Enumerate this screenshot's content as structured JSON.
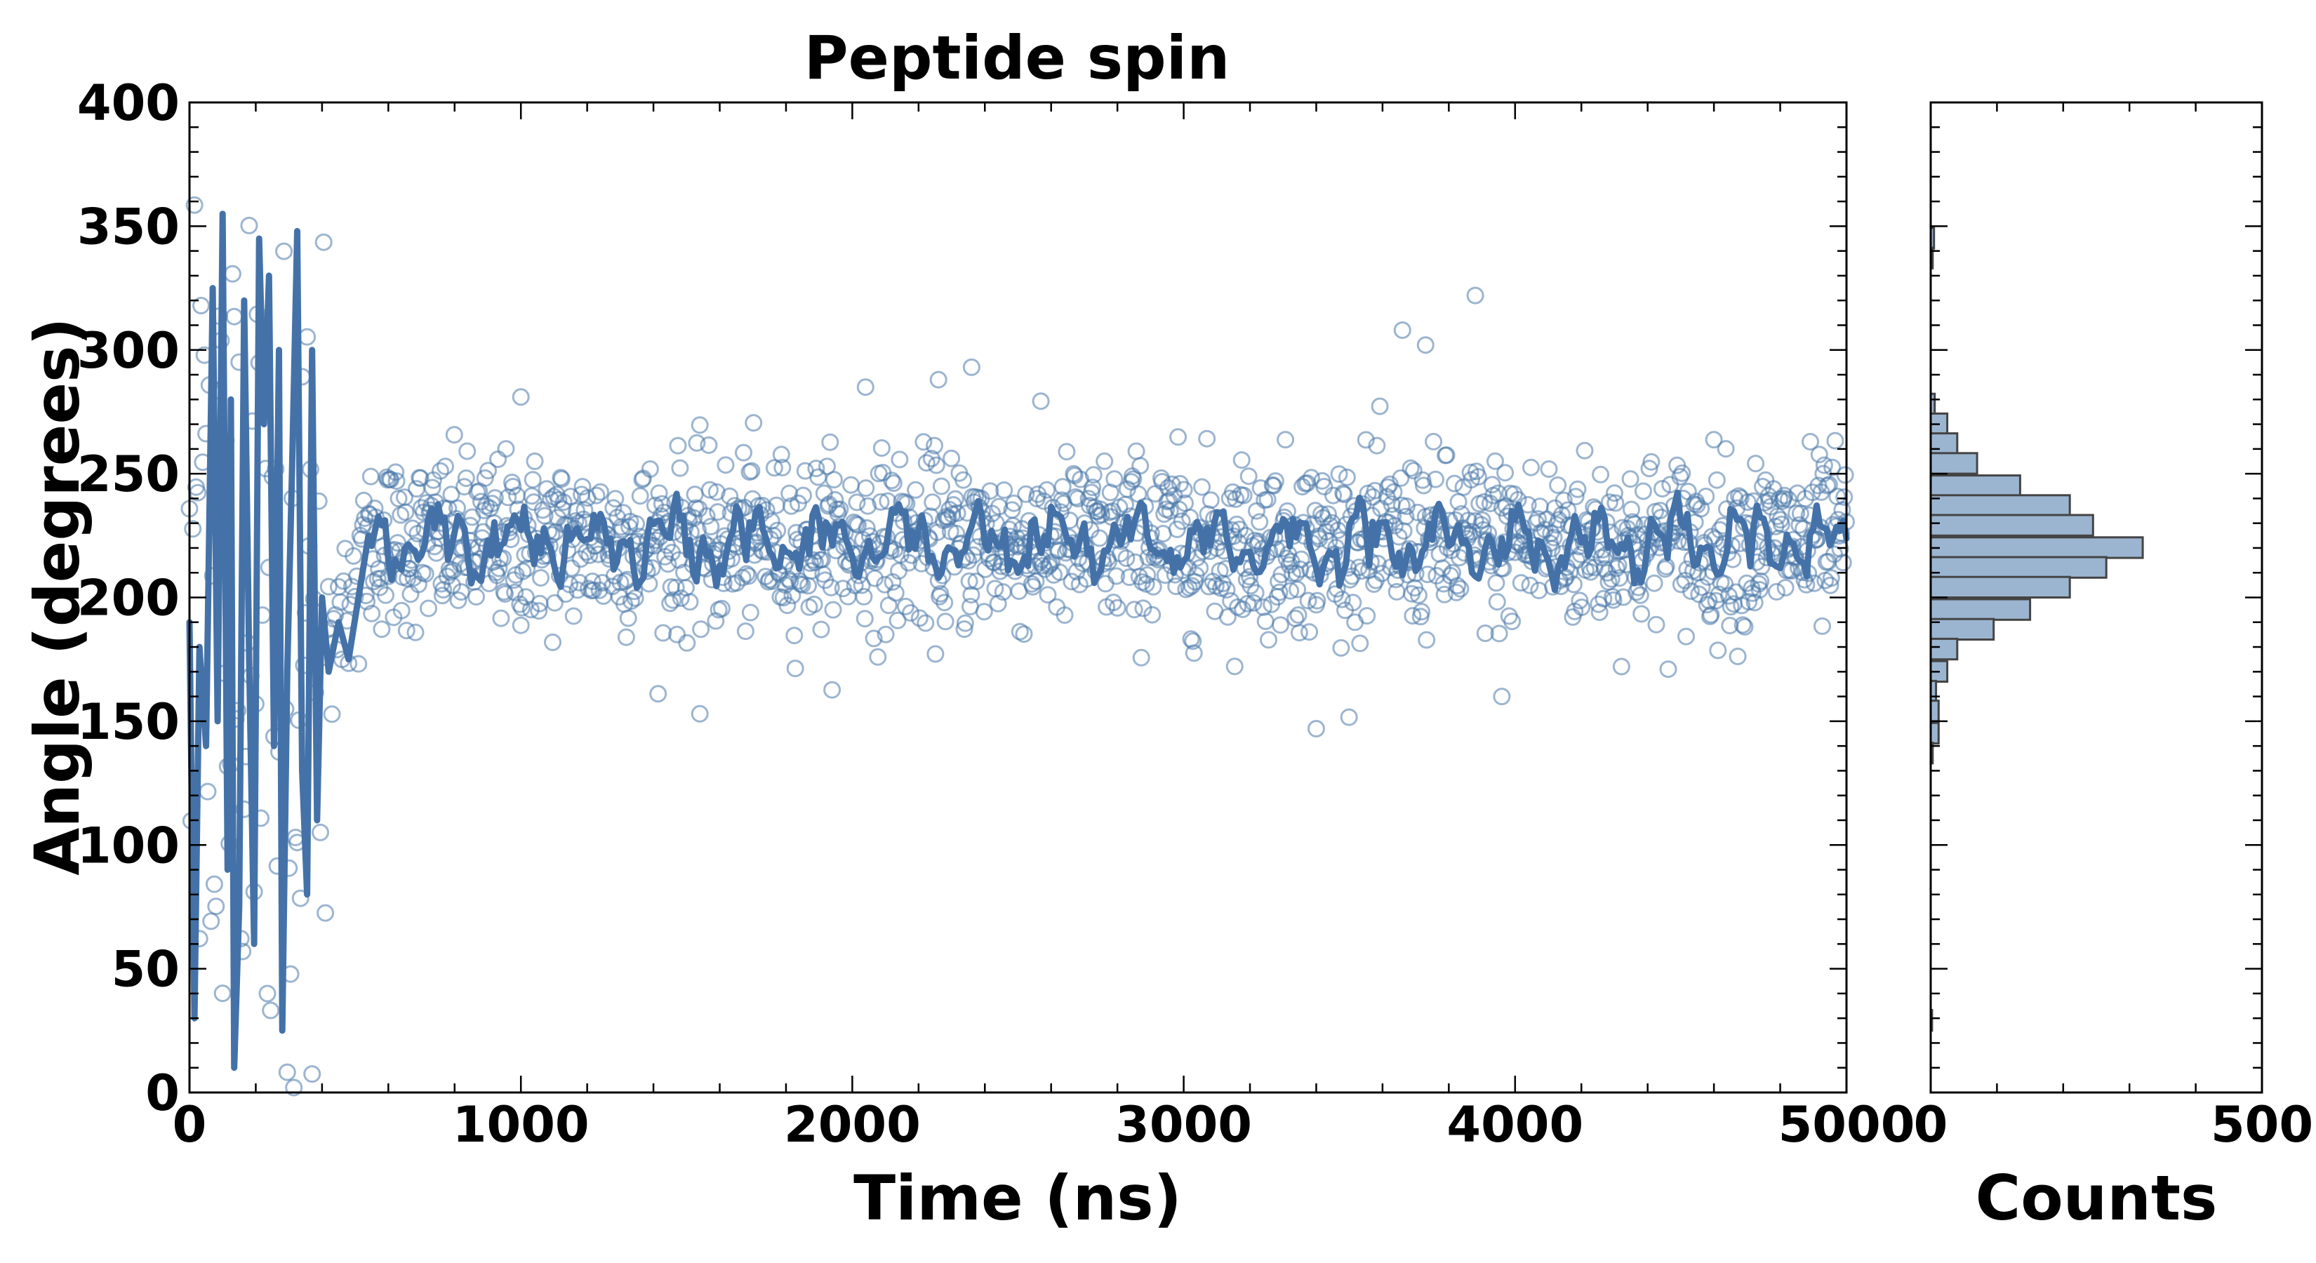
{
  "chart_data": {
    "title": "Peptide spin",
    "main": {
      "type": "scatter",
      "xlabel": "Time (ns)",
      "ylabel": "Angle (degrees)",
      "xlim": [
        0,
        5000
      ],
      "ylim": [
        0,
        400
      ],
      "xticks": [
        0,
        1000,
        2000,
        3000,
        4000,
        5000
      ],
      "yticks": [
        0,
        50,
        100,
        150,
        200,
        250,
        300,
        350,
        400
      ],
      "grid": false,
      "marker_color": "#4a78aa",
      "line_color": "#4472a8",
      "series": [
        {
          "kind": "points",
          "segments": [
            {
              "x_range": [
                0,
                520
              ],
              "pattern": "fluctuating",
              "y_range": [
                0,
                360
              ]
            },
            {
              "x_range": [
                520,
                5000
              ],
              "pattern": "steady",
              "center": 222,
              "spread": 28
            }
          ],
          "outliers": [
            {
              "x": 1000,
              "y": 281
            },
            {
              "x": 1540,
              "y": 153
            },
            {
              "x": 3400,
              "y": 147
            },
            {
              "x": 3660,
              "y": 308
            },
            {
              "x": 3730,
              "y": 302
            },
            {
              "x": 3880,
              "y": 322
            },
            {
              "x": 3960,
              "y": 160
            },
            {
              "x": 2040,
              "y": 285
            },
            {
              "x": 2260,
              "y": 288
            },
            {
              "x": 2360,
              "y": 293
            }
          ]
        },
        {
          "kind": "running-average-line",
          "early_path": [
            {
              "x": 0,
              "y": 190
            },
            {
              "x": 15,
              "y": 30
            },
            {
              "x": 30,
              "y": 180
            },
            {
              "x": 50,
              "y": 140
            },
            {
              "x": 70,
              "y": 325
            },
            {
              "x": 85,
              "y": 150
            },
            {
              "x": 100,
              "y": 355
            },
            {
              "x": 115,
              "y": 90
            },
            {
              "x": 125,
              "y": 280
            },
            {
              "x": 135,
              "y": 10
            },
            {
              "x": 150,
              "y": 75
            },
            {
              "x": 165,
              "y": 320
            },
            {
              "x": 180,
              "y": 175
            },
            {
              "x": 195,
              "y": 60
            },
            {
              "x": 210,
              "y": 345
            },
            {
              "x": 225,
              "y": 270
            },
            {
              "x": 240,
              "y": 330
            },
            {
              "x": 255,
              "y": 140
            },
            {
              "x": 270,
              "y": 300
            },
            {
              "x": 280,
              "y": 25
            },
            {
              "x": 295,
              "y": 170
            },
            {
              "x": 310,
              "y": 255
            },
            {
              "x": 325,
              "y": 348
            },
            {
              "x": 340,
              "y": 130
            },
            {
              "x": 355,
              "y": 80
            },
            {
              "x": 370,
              "y": 300
            },
            {
              "x": 385,
              "y": 110
            },
            {
              "x": 400,
              "y": 200
            },
            {
              "x": 420,
              "y": 170
            },
            {
              "x": 450,
              "y": 190
            },
            {
              "x": 480,
              "y": 175
            },
            {
              "x": 510,
              "y": 200
            },
            {
              "x": 540,
              "y": 225
            }
          ],
          "steady_center": 222
        }
      ]
    },
    "side": {
      "type": "bar",
      "orientation": "horizontal",
      "xlabel": "Counts",
      "xlim": [
        0,
        500
      ],
      "xticks": [
        0,
        500
      ],
      "ylim": [
        0,
        400
      ],
      "bin_width": 8.3,
      "bar_color": "#9bb5d1",
      "edge_color": "#444444",
      "bins": [
        {
          "y0": 341,
          "count": 5
        },
        {
          "y0": 333,
          "count": 3
        },
        {
          "y0": 274,
          "count": 6
        },
        {
          "y0": 266,
          "count": 25
        },
        {
          "y0": 258,
          "count": 40
        },
        {
          "y0": 250,
          "count": 70
        },
        {
          "y0": 241,
          "count": 135
        },
        {
          "y0": 233,
          "count": 210
        },
        {
          "y0": 225,
          "count": 245
        },
        {
          "y0": 216,
          "count": 320
        },
        {
          "y0": 208,
          "count": 265
        },
        {
          "y0": 200,
          "count": 210
        },
        {
          "y0": 191,
          "count": 150
        },
        {
          "y0": 183,
          "count": 95
        },
        {
          "y0": 175,
          "count": 40
        },
        {
          "y0": 166,
          "count": 25
        },
        {
          "y0": 158,
          "count": 8
        },
        {
          "y0": 150,
          "count": 12
        },
        {
          "y0": 141,
          "count": 12
        },
        {
          "y0": 133,
          "count": 3
        },
        {
          "y0": 25,
          "count": 2
        }
      ]
    }
  }
}
